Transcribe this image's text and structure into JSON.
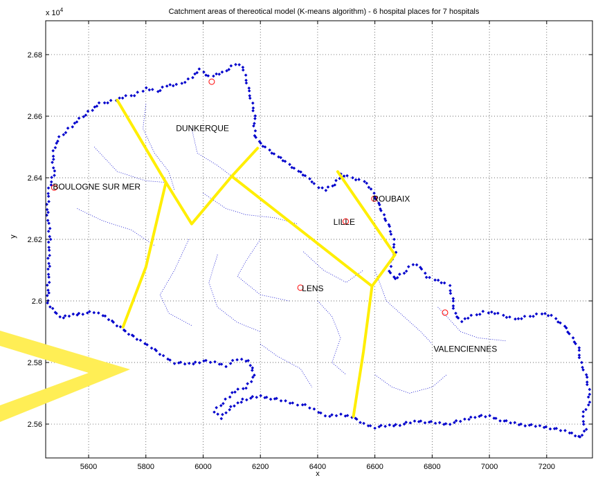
{
  "chart_data": {
    "type": "scatter",
    "title": "Catchment areas of thereotical model (K-means algorithm) - 6 hospital places for 7 hospitals",
    "xlabel": "x",
    "ylabel": "y",
    "y_exponent_label": "x 10",
    "y_exponent_power": "4",
    "xlim": [
      5450,
      7360
    ],
    "ylim": [
      25490,
      26910
    ],
    "grid": true,
    "x_ticks": [
      5600,
      5800,
      6000,
      6200,
      6400,
      6600,
      6800,
      7000,
      7200
    ],
    "y_ticks": [
      25600,
      25800,
      26000,
      26200,
      26400,
      26600,
      26800
    ],
    "y_tick_labels": [
      "2.56",
      "2.58",
      "2.6",
      "2.62",
      "2.64",
      "2.66",
      "2.68"
    ],
    "colors": {
      "boundary": "#0000cc",
      "internal": "#0000cc",
      "hospital": "#ff0000",
      "catchment_line": "#ffee00",
      "arrow": "#ffee55"
    },
    "place_labels": [
      {
        "text": "DUNKERQUE",
        "x": 5905,
        "y": 26552
      },
      {
        "text": "BOULOGNE SUR MER",
        "x": 5475,
        "y": 26362
      },
      {
        "text": "ROUBAIX",
        "x": 6592,
        "y": 26322
      },
      {
        "text": "LILLE",
        "x": 6455,
        "y": 26247
      },
      {
        "text": "LENS",
        "x": 6345,
        "y": 26032
      },
      {
        "text": "VALENCIENNES",
        "x": 6805,
        "y": 25835
      }
    ],
    "series": [
      {
        "name": "Hospital places",
        "marker": "circle",
        "points": [
          [
            6030,
            26712
          ],
          [
            5480,
            26368
          ],
          [
            6598,
            26332
          ],
          [
            6498,
            26258
          ],
          [
            6340,
            26043
          ],
          [
            6845,
            25962
          ]
        ]
      },
      {
        "name": "Catchment boundaries",
        "style": "line",
        "segments": [
          [
            [
              5700,
              26652
            ],
            [
              5870,
              26385
            ],
            [
              5960,
              26250
            ],
            [
              6100,
              26405
            ],
            [
              6190,
              26496
            ]
          ],
          [
            [
              5870,
              26385
            ],
            [
              5800,
              26110
            ],
            [
              5720,
              25915
            ]
          ],
          [
            [
              6100,
              26405
            ],
            [
              6340,
              26230
            ],
            [
              6590,
              26048
            ],
            [
              6670,
              26150
            ],
            [
              6470,
              26420
            ]
          ],
          [
            [
              6590,
              26048
            ],
            [
              6560,
              25835
            ],
            [
              6525,
              25625
            ]
          ]
        ]
      },
      {
        "name": "Region boundary",
        "marker": "diamond",
        "points": [
          [
            5460,
            25990
          ],
          [
            5480,
            25965
          ],
          [
            5510,
            25945
          ],
          [
            5545,
            25955
          ],
          [
            5580,
            25960
          ],
          [
            5620,
            25963
          ],
          [
            5660,
            25950
          ],
          [
            5700,
            25920
          ],
          [
            5740,
            25895
          ],
          [
            5780,
            25870
          ],
          [
            5820,
            25850
          ],
          [
            5860,
            25820
          ],
          [
            5900,
            25800
          ],
          [
            5950,
            25795
          ],
          [
            6000,
            25805
          ],
          [
            6040,
            25800
          ],
          [
            6080,
            25790
          ],
          [
            6120,
            25810
          ],
          [
            6160,
            25805
          ],
          [
            6180,
            25760
          ],
          [
            6150,
            25720
          ],
          [
            6100,
            25700
          ],
          [
            6060,
            25660
          ],
          [
            6040,
            25640
          ],
          [
            6060,
            25620
          ],
          [
            6080,
            25640
          ],
          [
            6140,
            25680
          ],
          [
            6200,
            25690
          ],
          [
            6260,
            25680
          ],
          [
            6300,
            25670
          ],
          [
            6330,
            25665
          ],
          [
            6360,
            25660
          ],
          [
            6400,
            25640
          ],
          [
            6440,
            25625
          ],
          [
            6480,
            25630
          ],
          [
            6520,
            25625
          ],
          [
            6560,
            25600
          ],
          [
            6600,
            25590
          ],
          [
            6650,
            25595
          ],
          [
            6700,
            25600
          ],
          [
            6750,
            25610
          ],
          [
            6800,
            25605
          ],
          [
            6850,
            25600
          ],
          [
            6900,
            25610
          ],
          [
            6950,
            25625
          ],
          [
            7000,
            25625
          ],
          [
            7050,
            25610
          ],
          [
            7100,
            25600
          ],
          [
            7150,
            25595
          ],
          [
            7200,
            25590
          ],
          [
            7250,
            25580
          ],
          [
            7290,
            25570
          ],
          [
            7320,
            25555
          ],
          [
            7335,
            25585
          ],
          [
            7325,
            25625
          ],
          [
            7345,
            25660
          ],
          [
            7350,
            25700
          ],
          [
            7340,
            25750
          ],
          [
            7320,
            25800
          ],
          [
            7310,
            25850
          ],
          [
            7290,
            25880
          ],
          [
            7260,
            25920
          ],
          [
            7220,
            25950
          ],
          [
            7180,
            25960
          ],
          [
            7140,
            25950
          ],
          [
            7100,
            25940
          ],
          [
            7060,
            25950
          ],
          [
            7020,
            25960
          ],
          [
            6980,
            25965
          ],
          [
            6940,
            25950
          ],
          [
            6900,
            25935
          ],
          [
            6880,
            25960
          ],
          [
            6870,
            26010
          ],
          [
            6860,
            26050
          ],
          [
            6820,
            26065
          ],
          [
            6780,
            26080
          ],
          [
            6760,
            26110
          ],
          [
            6730,
            26120
          ],
          [
            6700,
            26090
          ],
          [
            6670,
            26070
          ],
          [
            6650,
            26100
          ],
          [
            6670,
            26160
          ],
          [
            6665,
            26200
          ],
          [
            6650,
            26240
          ],
          [
            6630,
            26280
          ],
          [
            6610,
            26320
          ],
          [
            6590,
            26360
          ],
          [
            6560,
            26390
          ],
          [
            6520,
            26400
          ],
          [
            6480,
            26410
          ],
          [
            6460,
            26380
          ],
          [
            6430,
            26360
          ],
          [
            6400,
            26370
          ],
          [
            6380,
            26390
          ],
          [
            6350,
            26410
          ],
          [
            6320,
            26430
          ],
          [
            6290,
            26450
          ],
          [
            6260,
            26470
          ],
          [
            6230,
            26490
          ],
          [
            6200,
            26510
          ],
          [
            6180,
            26540
          ],
          [
            6180,
            26590
          ],
          [
            6175,
            26630
          ],
          [
            6160,
            26680
          ],
          [
            6150,
            26720
          ],
          [
            6140,
            26760
          ],
          [
            6110,
            26770
          ],
          [
            6070,
            26740
          ],
          [
            6020,
            26730
          ],
          [
            5990,
            26750
          ],
          [
            5950,
            26720
          ],
          [
            5910,
            26700
          ],
          [
            5870,
            26700
          ],
          [
            5840,
            26680
          ],
          [
            5800,
            26690
          ],
          [
            5760,
            26670
          ],
          [
            5720,
            26660
          ],
          [
            5680,
            26650
          ],
          [
            5640,
            26640
          ],
          [
            5600,
            26615
          ],
          [
            5570,
            26590
          ],
          [
            5530,
            26560
          ],
          [
            5500,
            26530
          ],
          [
            5480,
            26500
          ],
          [
            5475,
            26460
          ],
          [
            5480,
            26420
          ],
          [
            5470,
            26390
          ],
          [
            5460,
            26350
          ],
          [
            5455,
            26300
          ],
          [
            5460,
            26250
          ],
          [
            5465,
            26200
          ],
          [
            5460,
            26150
          ],
          [
            5462,
            26100
          ],
          [
            5458,
            26050
          ],
          [
            5460,
            25990
          ]
        ]
      }
    ]
  }
}
